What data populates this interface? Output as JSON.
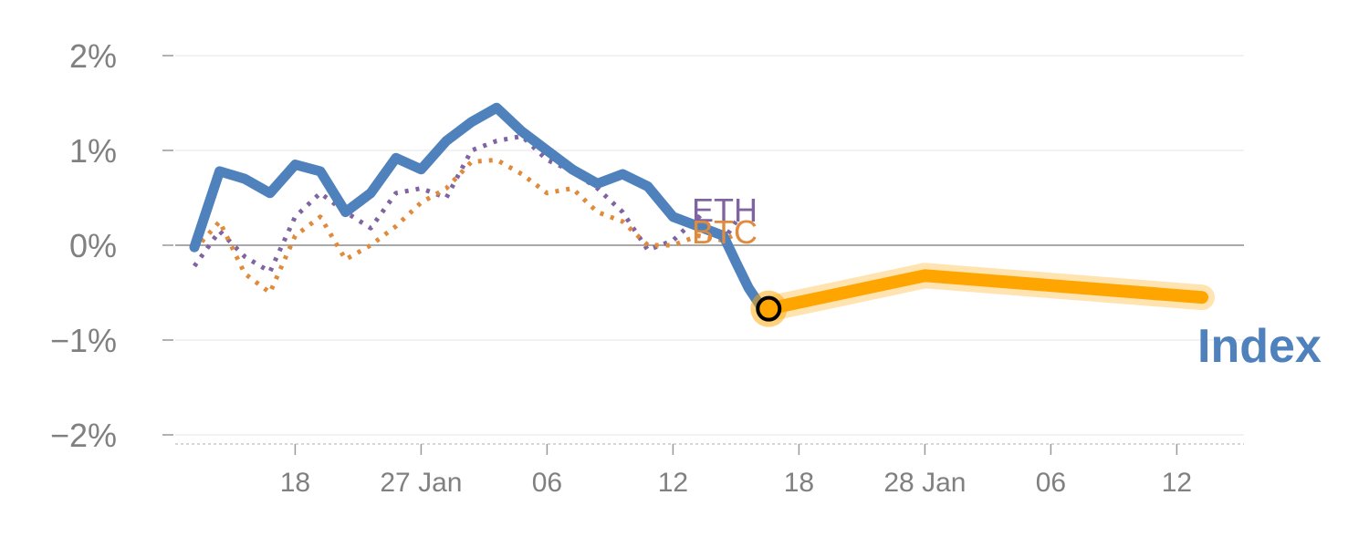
{
  "chart_data": {
    "type": "line",
    "title": "",
    "xlabel": "",
    "ylabel": "",
    "y_unit": "%",
    "ylim": [
      -2,
      2
    ],
    "y_ticks": [
      2,
      1,
      0,
      -1,
      -2
    ],
    "y_tick_labels": [
      "2%",
      "1%",
      "0%",
      "−1%",
      "−2%"
    ],
    "grid": true,
    "x_ticks": [
      {
        "x": 4,
        "label": "18"
      },
      {
        "x": 9,
        "label": "27 Jan"
      },
      {
        "x": 14,
        "label": "06"
      },
      {
        "x": 19,
        "label": "12"
      },
      {
        "x": 24,
        "label": "18"
      },
      {
        "x": 29,
        "label": "28 Jan"
      },
      {
        "x": 34,
        "label": "06"
      },
      {
        "x": 39,
        "label": "12"
      }
    ],
    "series": [
      {
        "name": "ETH",
        "color": "#8064a2",
        "style": "dotted",
        "points": [
          [
            0,
            -0.22
          ],
          [
            1,
            0.15
          ],
          [
            2,
            -0.12
          ],
          [
            3,
            -0.28
          ],
          [
            4,
            0.3
          ],
          [
            5,
            0.55
          ],
          [
            6,
            0.35
          ],
          [
            7,
            0.18
          ],
          [
            8,
            0.55
          ],
          [
            9,
            0.6
          ],
          [
            10,
            0.5
          ],
          [
            11,
            1.0
          ],
          [
            12,
            1.1
          ],
          [
            13,
            1.15
          ],
          [
            14,
            0.9
          ],
          [
            15,
            0.78
          ],
          [
            16,
            0.6
          ],
          [
            17,
            0.35
          ],
          [
            18,
            -0.05
          ],
          [
            19,
            0.05
          ],
          [
            20,
            0.3
          ],
          [
            21,
            0.05
          ],
          [
            21.5,
            0.25
          ]
        ]
      },
      {
        "name": "BTC",
        "color": "#e08a3c",
        "style": "dotted",
        "points": [
          [
            0,
            -0.05
          ],
          [
            1,
            0.25
          ],
          [
            2,
            -0.3
          ],
          [
            3,
            -0.5
          ],
          [
            4,
            0.1
          ],
          [
            5,
            0.3
          ],
          [
            6,
            -0.15
          ],
          [
            7,
            0.0
          ],
          [
            8,
            0.2
          ],
          [
            9,
            0.45
          ],
          [
            10,
            0.6
          ],
          [
            11,
            0.88
          ],
          [
            12,
            0.9
          ],
          [
            13,
            0.75
          ],
          [
            14,
            0.55
          ],
          [
            15,
            0.6
          ],
          [
            16,
            0.35
          ],
          [
            17,
            0.25
          ],
          [
            18,
            0.0
          ],
          [
            19,
            0.0
          ],
          [
            20,
            0.1
          ],
          [
            21,
            0.05
          ],
          [
            21.5,
            0.12
          ]
        ]
      },
      {
        "name": "Index",
        "color": "#4f81bd",
        "style": "solid",
        "points": [
          [
            0,
            -0.02
          ],
          [
            1,
            0.78
          ],
          [
            2,
            0.7
          ],
          [
            3,
            0.55
          ],
          [
            4,
            0.85
          ],
          [
            5,
            0.78
          ],
          [
            6,
            0.35
          ],
          [
            7,
            0.55
          ],
          [
            8,
            0.92
          ],
          [
            9,
            0.8
          ],
          [
            10,
            1.1
          ],
          [
            11,
            1.3
          ],
          [
            12,
            1.45
          ],
          [
            13,
            1.2
          ],
          [
            14,
            1.0
          ],
          [
            15,
            0.8
          ],
          [
            16,
            0.65
          ],
          [
            17,
            0.75
          ],
          [
            18,
            0.62
          ],
          [
            19,
            0.3
          ],
          [
            20,
            0.2
          ],
          [
            21,
            0.1
          ],
          [
            21.5,
            -0.18
          ],
          [
            22,
            -0.45
          ],
          [
            22.5,
            -0.65
          ]
        ]
      }
    ],
    "forecast": {
      "color": "#ffa500",
      "points": [
        [
          22.8,
          -0.67
        ],
        [
          29,
          -0.32
        ],
        [
          40,
          -0.55
        ]
      ]
    },
    "marker": {
      "x": 22.8,
      "y": -0.67,
      "fill": "#ffa500",
      "ring": "#000000"
    },
    "labels": {
      "eth": "ETH",
      "btc": "BTC",
      "index": "Index"
    }
  }
}
